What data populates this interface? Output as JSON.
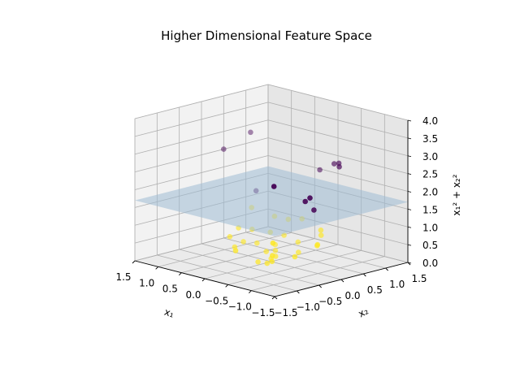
{
  "chart_data": {
    "type": "scatter",
    "title": "Higher Dimensional Feature Space",
    "xlabel": "x₁",
    "ylabel": "x₂",
    "zlabel": "x₁² + x₂²",
    "x_ticks": [
      "−1.5",
      "−1.0",
      "−0.5",
      "0.0",
      "0.5",
      "1.0",
      "1.5"
    ],
    "y_ticks": [
      "−1.5",
      "−1.0",
      "−0.5",
      "0.0",
      "0.5",
      "1.0",
      "1.5"
    ],
    "z_ticks": [
      "0.0",
      "0.5",
      "1.0",
      "1.5",
      "2.0",
      "2.5",
      "3.0",
      "3.5",
      "4.0"
    ],
    "xlim": [
      -1.5,
      1.5
    ],
    "ylim": [
      -1.5,
      1.5
    ],
    "zlim": [
      0,
      4
    ],
    "grid": true,
    "plane_z": 1.7,
    "colors": {
      "outer": "#440154",
      "inner": "#fde725",
      "plane": "#9fbbd4"
    },
    "series": [
      {
        "class": "outer",
        "points": [
          {
            "x": -1.2,
            "y": -1.2,
            "z": 2.9
          },
          {
            "x": -1.4,
            "y": -0.6,
            "z": 2.45
          },
          {
            "x": -1.3,
            "y": -0.6,
            "z": 2.32
          },
          {
            "x": -1.2,
            "y": -0.3,
            "z": 1.95
          },
          {
            "x": -0.6,
            "y": 0.9,
            "z": 2.58
          },
          {
            "x": -0.4,
            "y": 1.1,
            "z": 2.55
          },
          {
            "x": -0.3,
            "y": 1.1,
            "z": 2.5
          },
          {
            "x": 0.2,
            "y": 1.3,
            "z": 2.1
          },
          {
            "x": 0.9,
            "y": 0.6,
            "z": 1.5
          },
          {
            "x": 1.5,
            "y": 0.5,
            "z": 2.5
          },
          {
            "x": 1.4,
            "y": 1.0,
            "z": 2.85
          }
        ]
      },
      {
        "class": "inner",
        "points": [
          {
            "x": -0.5,
            "y": -0.5,
            "z": 0.5
          },
          {
            "x": -0.3,
            "y": -0.3,
            "z": 0.2
          },
          {
            "x": 0.2,
            "y": 0.3,
            "z": 0.15
          },
          {
            "x": 0.3,
            "y": 0.2,
            "z": 0.12
          },
          {
            "x": -0.2,
            "y": 0.4,
            "z": 0.2
          },
          {
            "x": 0.5,
            "y": -0.3,
            "z": 0.34
          },
          {
            "x": 0.7,
            "y": -0.2,
            "z": 0.53
          },
          {
            "x": 0.3,
            "y": 0.6,
            "z": 0.45
          },
          {
            "x": -0.6,
            "y": 0.4,
            "z": 0.52
          },
          {
            "x": 0.6,
            "y": 0.7,
            "z": 0.85
          },
          {
            "x": -0.7,
            "y": -0.7,
            "z": 0.98
          },
          {
            "x": 0.1,
            "y": -0.7,
            "z": 0.5
          },
          {
            "x": -0.4,
            "y": 0.7,
            "z": 0.65
          },
          {
            "x": 0.8,
            "y": 0.1,
            "z": 0.65
          },
          {
            "x": 0.1,
            "y": 0.1,
            "z": 0.02
          },
          {
            "x": -0.1,
            "y": -0.2,
            "z": 0.05
          },
          {
            "x": 0.4,
            "y": 0.8,
            "z": 0.8
          },
          {
            "x": 0.9,
            "y": 0.5,
            "z": 1.06
          },
          {
            "x": 0.5,
            "y": 0.5,
            "z": 0.5
          },
          {
            "x": -0.8,
            "y": 0.2,
            "z": 0.68
          },
          {
            "x": 0.0,
            "y": 0.6,
            "z": 0.36
          },
          {
            "x": 0.6,
            "y": 0.0,
            "z": 0.36
          },
          {
            "x": -0.3,
            "y": 0.8,
            "z": 0.73
          },
          {
            "x": 0.2,
            "y": 0.9,
            "z": 0.85
          },
          {
            "x": -0.6,
            "y": -0.1,
            "z": 0.37
          },
          {
            "x": 0.7,
            "y": 0.3,
            "z": 0.58
          },
          {
            "x": 0.0,
            "y": -0.3,
            "z": 0.09
          },
          {
            "x": 0.1,
            "y": 0.2,
            "z": 0.05
          },
          {
            "x": 0.5,
            "y": 0.2,
            "z": 0.29
          },
          {
            "x": 0.3,
            "y": 0.4,
            "z": 0.25
          }
        ]
      }
    ]
  }
}
